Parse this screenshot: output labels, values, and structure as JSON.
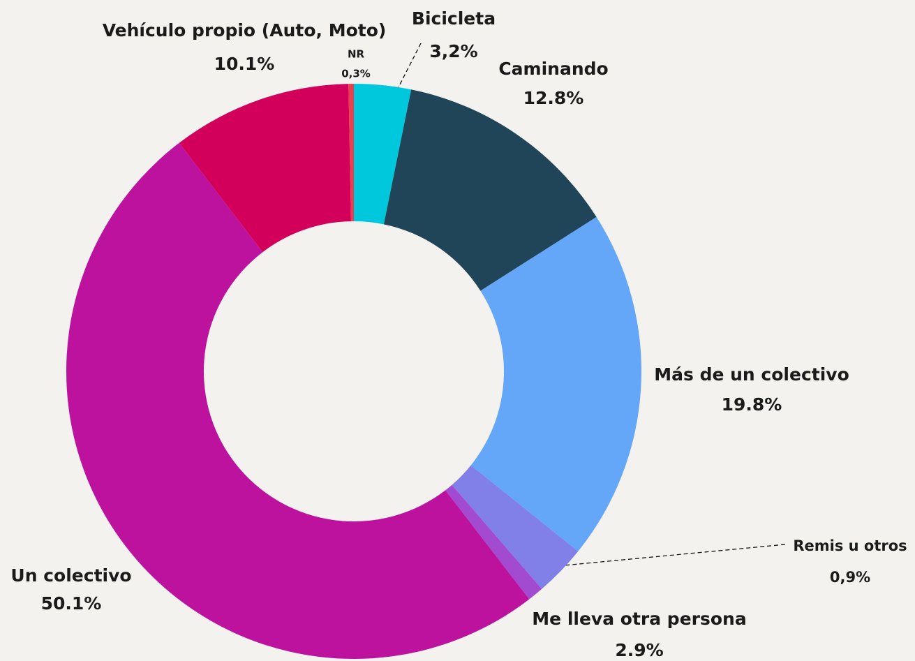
{
  "chart_data": {
    "type": "donut",
    "categories": [
      "Bicicleta",
      "Caminando",
      "Más de un colectivo",
      "Me lleva otra persona",
      "Remis u otros",
      "Un colectivo",
      "Vehículo propio (Auto, Moto)",
      "NR"
    ],
    "values": [
      3.2,
      12.8,
      19.8,
      2.9,
      0.9,
      50.1,
      10.1,
      0.3
    ],
    "value_labels": [
      "3,2%",
      "12.8%",
      "19.8%",
      "2.9%",
      "0,9%",
      "50.1%",
      "10.1%",
      "0,3%"
    ],
    "colors": [
      "#00c8dc",
      "#204458",
      "#64a6f8",
      "#8080e8",
      "#a24bd0",
      "#bc129e",
      "#d2005a",
      "#e8404c"
    ]
  }
}
